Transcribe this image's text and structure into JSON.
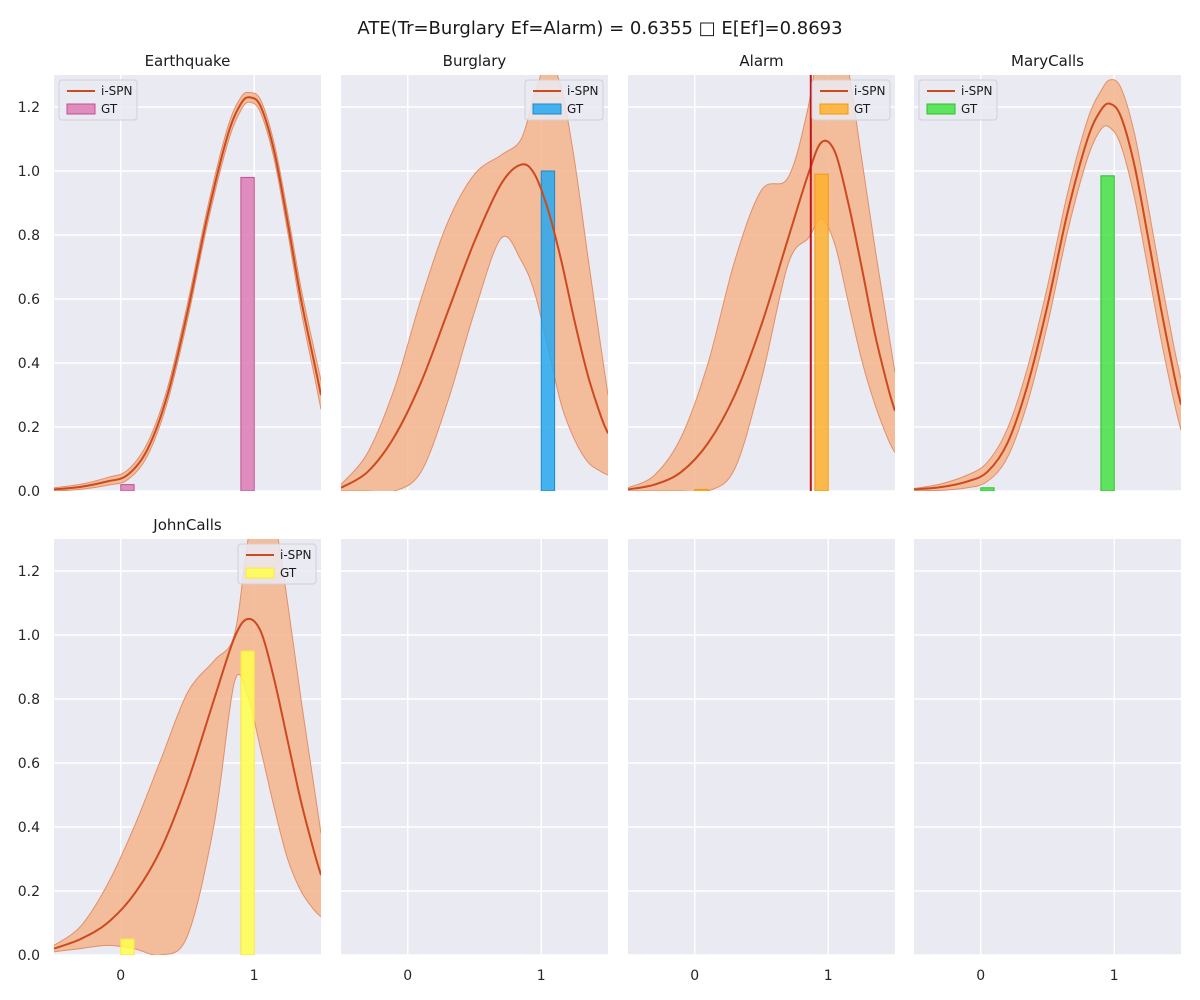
{
  "chart_data": {
    "type": "area",
    "title": "ATE(Tr=Burglary Ef=Alarm) = 0.6355 □ E[Ef]=0.8693",
    "layout": "2x4 grid, shared axes",
    "xlim": [
      -0.5,
      1.5
    ],
    "ylim": [
      0,
      1.3
    ],
    "x_ticks": [
      "0",
      "1"
    ],
    "y_ticks": [
      "0.0",
      "0.2",
      "0.4",
      "0.6",
      "0.8",
      "1.0",
      "1.2"
    ],
    "grid": true,
    "legend_labels": [
      "i-SPN",
      "GT"
    ],
    "colors": {
      "line": "#cc4a1f",
      "band": "#f4b48c",
      "band_edge": "#e0906a",
      "background": "#eaeaf2",
      "vline": "#c0141c"
    },
    "panels": [
      {
        "title": "Earthquake",
        "legend_loc": "upper left",
        "gt_color": "#dd7bb6",
        "gt_edge": "#c05090",
        "gt_bars": [
          {
            "x": 0.05,
            "value": 0.02
          },
          {
            "x": 0.95,
            "value": 0.98
          }
        ],
        "curve": [
          [
            -0.5,
            0.005
          ],
          [
            -0.3,
            0.013
          ],
          [
            -0.1,
            0.03
          ],
          [
            0.05,
            0.05
          ],
          [
            0.2,
            0.13
          ],
          [
            0.35,
            0.3
          ],
          [
            0.5,
            0.56
          ],
          [
            0.65,
            0.86
          ],
          [
            0.8,
            1.11
          ],
          [
            0.9,
            1.21
          ],
          [
            0.97,
            1.23
          ],
          [
            1.05,
            1.2
          ],
          [
            1.15,
            1.06
          ],
          [
            1.25,
            0.84
          ],
          [
            1.35,
            0.6
          ],
          [
            1.45,
            0.4
          ],
          [
            1.5,
            0.3
          ]
        ],
        "band_halfwidth": [
          0.005,
          0.008,
          0.012,
          0.015,
          0.02,
          0.022,
          0.025,
          0.025,
          0.025,
          0.02,
          0.015,
          0.02,
          0.025,
          0.03,
          0.035,
          0.04,
          0.045
        ]
      },
      {
        "title": "Burglary",
        "legend_loc": "upper right",
        "gt_color": "#26a8ef",
        "gt_edge": "#1a8ad0",
        "gt_bars": [
          {
            "x": 1.05,
            "value": 1.0
          }
        ],
        "curve": [
          [
            -0.5,
            0.01
          ],
          [
            -0.3,
            0.06
          ],
          [
            -0.1,
            0.17
          ],
          [
            0.1,
            0.34
          ],
          [
            0.3,
            0.56
          ],
          [
            0.5,
            0.78
          ],
          [
            0.7,
            0.96
          ],
          [
            0.85,
            1.02
          ],
          [
            0.95,
            0.99
          ],
          [
            1.05,
            0.88
          ],
          [
            1.15,
            0.72
          ],
          [
            1.25,
            0.53
          ],
          [
            1.35,
            0.36
          ],
          [
            1.45,
            0.23
          ],
          [
            1.5,
            0.18
          ]
        ],
        "band_upper": [
          0.02,
          0.12,
          0.32,
          0.6,
          0.84,
          0.99,
          1.05,
          1.1,
          1.24,
          1.34,
          1.26,
          1.03,
          0.73,
          0.44,
          0.3
        ],
        "band_lower": [
          0.0,
          0.0,
          0.0,
          0.06,
          0.28,
          0.56,
          0.79,
          0.72,
          0.62,
          0.45,
          0.27,
          0.16,
          0.09,
          0.06,
          0.05
        ]
      },
      {
        "title": "Alarm",
        "legend_loc": "upper right",
        "gt_color": "#ffb02e",
        "gt_edge": "#f09a10",
        "gt_bars": [
          {
            "x": 0.05,
            "value": 0.005
          },
          {
            "x": 0.95,
            "value": 0.99
          }
        ],
        "vline_x": 0.8693,
        "curve": [
          [
            -0.5,
            0.005
          ],
          [
            -0.3,
            0.02
          ],
          [
            -0.1,
            0.06
          ],
          [
            0.1,
            0.15
          ],
          [
            0.3,
            0.3
          ],
          [
            0.5,
            0.52
          ],
          [
            0.7,
            0.79
          ],
          [
            0.85,
            0.99
          ],
          [
            0.95,
            1.09
          ],
          [
            1.05,
            1.06
          ],
          [
            1.15,
            0.9
          ],
          [
            1.25,
            0.7
          ],
          [
            1.35,
            0.49
          ],
          [
            1.45,
            0.32
          ],
          [
            1.5,
            0.25
          ]
        ],
        "band_upper": [
          0.01,
          0.05,
          0.17,
          0.4,
          0.72,
          0.94,
          0.98,
          1.2,
          1.45,
          1.52,
          1.32,
          1.04,
          0.76,
          0.5,
          0.37
        ],
        "band_lower": [
          0.0,
          0.0,
          0.0,
          0.0,
          0.07,
          0.35,
          0.71,
          0.79,
          0.85,
          0.77,
          0.59,
          0.41,
          0.27,
          0.16,
          0.12
        ]
      },
      {
        "title": "MaryCalls",
        "legend_loc": "upper left",
        "gt_color": "#44e244",
        "gt_edge": "#2cc02c",
        "gt_bars": [
          {
            "x": 0.05,
            "value": 0.01
          },
          {
            "x": 0.95,
            "value": 0.985
          }
        ],
        "curve": [
          [
            -0.5,
            0.005
          ],
          [
            -0.3,
            0.012
          ],
          [
            -0.1,
            0.03
          ],
          [
            0.05,
            0.06
          ],
          [
            0.2,
            0.15
          ],
          [
            0.35,
            0.33
          ],
          [
            0.5,
            0.58
          ],
          [
            0.65,
            0.87
          ],
          [
            0.8,
            1.1
          ],
          [
            0.9,
            1.19
          ],
          [
            0.97,
            1.21
          ],
          [
            1.05,
            1.17
          ],
          [
            1.15,
            1.02
          ],
          [
            1.25,
            0.8
          ],
          [
            1.35,
            0.57
          ],
          [
            1.45,
            0.36
          ],
          [
            1.5,
            0.27
          ]
        ],
        "band_halfwidth": [
          0.003,
          0.01,
          0.02,
          0.03,
          0.045,
          0.055,
          0.06,
          0.06,
          0.06,
          0.06,
          0.075,
          0.09,
          0.1,
          0.1,
          0.095,
          0.085,
          0.08
        ]
      },
      {
        "title": "JohnCalls",
        "legend_loc": "upper right",
        "gt_color": "#ffff4d",
        "gt_edge": "#ffe24a",
        "gt_bars": [
          {
            "x": 0.05,
            "value": 0.05
          },
          {
            "x": 0.95,
            "value": 0.95
          }
        ],
        "curve": [
          [
            -0.5,
            0.02
          ],
          [
            -0.3,
            0.05
          ],
          [
            -0.1,
            0.1
          ],
          [
            0.1,
            0.19
          ],
          [
            0.3,
            0.33
          ],
          [
            0.5,
            0.54
          ],
          [
            0.7,
            0.8
          ],
          [
            0.85,
            0.99
          ],
          [
            0.95,
            1.05
          ],
          [
            1.05,
            1.01
          ],
          [
            1.15,
            0.86
          ],
          [
            1.25,
            0.67
          ],
          [
            1.35,
            0.48
          ],
          [
            1.45,
            0.32
          ],
          [
            1.5,
            0.25
          ]
        ],
        "band_upper": [
          0.03,
          0.09,
          0.22,
          0.4,
          0.61,
          0.82,
          0.92,
          1.0,
          1.29,
          1.5,
          1.37,
          1.1,
          0.8,
          0.52,
          0.38
        ],
        "band_lower": [
          0.01,
          0.02,
          0.03,
          0.02,
          0.0,
          0.06,
          0.41,
          0.85,
          0.81,
          0.64,
          0.46,
          0.3,
          0.2,
          0.14,
          0.12
        ]
      },
      {
        "title": "",
        "empty": true
      },
      {
        "title": "",
        "empty": true
      },
      {
        "title": "",
        "empty": true
      }
    ]
  }
}
